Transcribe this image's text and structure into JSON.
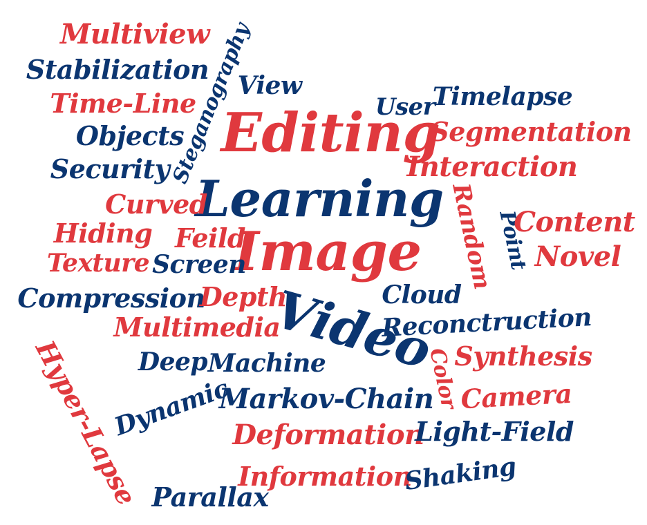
{
  "colors": {
    "red": "#e0393e",
    "blue": "#0b3570",
    "background": "#ffffff"
  },
  "words": [
    {
      "id": "multiview",
      "text": "Multiview",
      "color": "red"
    },
    {
      "id": "stabilization",
      "text": "Stabilization",
      "color": "blue"
    },
    {
      "id": "steganography",
      "text": "Steganography",
      "color": "blue"
    },
    {
      "id": "view",
      "text": "View",
      "color": "blue"
    },
    {
      "id": "time-line",
      "text": "Time-Line",
      "color": "red"
    },
    {
      "id": "user",
      "text": "User",
      "color": "blue"
    },
    {
      "id": "timelapse",
      "text": "Timelapse",
      "color": "blue"
    },
    {
      "id": "editing",
      "text": "Editing",
      "color": "red"
    },
    {
      "id": "objects",
      "text": "Objects",
      "color": "blue"
    },
    {
      "id": "segmentation",
      "text": "Segmentation",
      "color": "red"
    },
    {
      "id": "security",
      "text": "Security",
      "color": "blue"
    },
    {
      "id": "interaction",
      "text": "Interaction",
      "color": "red"
    },
    {
      "id": "learning",
      "text": "Learning",
      "color": "blue"
    },
    {
      "id": "curved",
      "text": "Curved",
      "color": "red"
    },
    {
      "id": "random",
      "text": "Random",
      "color": "red"
    },
    {
      "id": "point",
      "text": "Point",
      "color": "blue"
    },
    {
      "id": "content",
      "text": "Content",
      "color": "red"
    },
    {
      "id": "hiding",
      "text": "Hiding",
      "color": "red"
    },
    {
      "id": "feild",
      "text": "Feild",
      "color": "red"
    },
    {
      "id": "image",
      "text": "Image",
      "color": "red"
    },
    {
      "id": "novel",
      "text": "Novel",
      "color": "red"
    },
    {
      "id": "texture",
      "text": "Texture",
      "color": "red"
    },
    {
      "id": "screen",
      "text": "Screen",
      "color": "blue"
    },
    {
      "id": "compression",
      "text": "Compression",
      "color": "blue"
    },
    {
      "id": "depth",
      "text": "Depth",
      "color": "red"
    },
    {
      "id": "cloud",
      "text": "Cloud",
      "color": "blue"
    },
    {
      "id": "video",
      "text": "Video",
      "color": "blue"
    },
    {
      "id": "reconctruction",
      "text": "Reconctruction",
      "color": "blue"
    },
    {
      "id": "multimedia",
      "text": "Multimedia",
      "color": "red"
    },
    {
      "id": "synthesis",
      "text": "Synthesis",
      "color": "red"
    },
    {
      "id": "hyper-lapse",
      "text": "Hyper-Lapse",
      "color": "red"
    },
    {
      "id": "deep",
      "text": "Deep",
      "color": "blue"
    },
    {
      "id": "machine",
      "text": "Machine",
      "color": "blue"
    },
    {
      "id": "color",
      "text": "Color",
      "color": "red"
    },
    {
      "id": "camera",
      "text": "Camera",
      "color": "red"
    },
    {
      "id": "dynamic",
      "text": "Dynamic",
      "color": "blue"
    },
    {
      "id": "markov-chain",
      "text": "Markov-Chain",
      "color": "blue"
    },
    {
      "id": "deformation",
      "text": "Deformation",
      "color": "red"
    },
    {
      "id": "light-field",
      "text": "Light-Field",
      "color": "blue"
    },
    {
      "id": "information",
      "text": "Information",
      "color": "red"
    },
    {
      "id": "shaking",
      "text": "Shaking",
      "color": "blue"
    },
    {
      "id": "parallax",
      "text": "Parallax",
      "color": "blue"
    }
  ]
}
